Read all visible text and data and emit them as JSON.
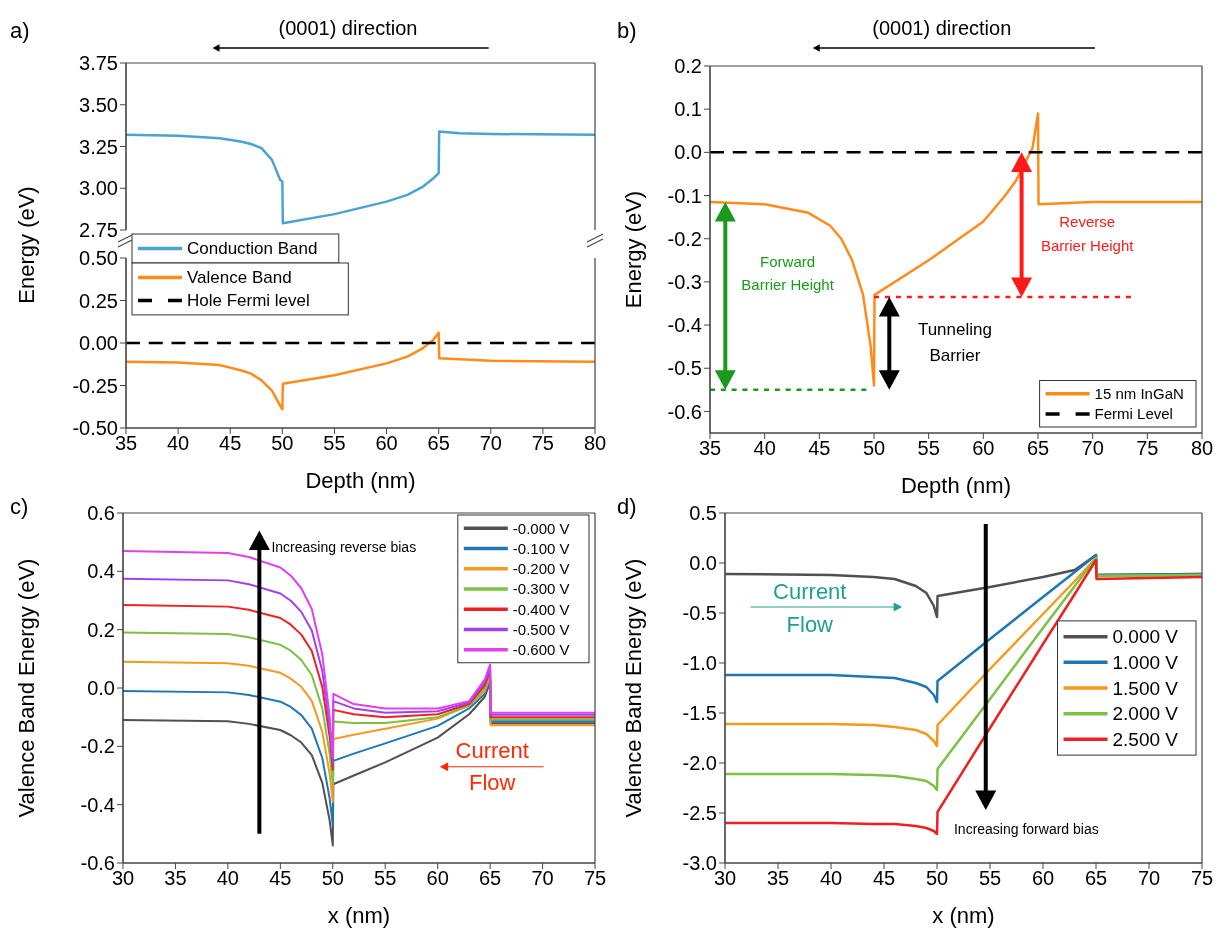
{
  "chart_data": [
    {
      "type": "line",
      "title": "(0001) direction",
      "annotations": [
        "a)"
      ],
      "x": [
        35,
        40,
        44,
        46,
        47,
        48,
        49,
        49.8,
        50,
        50.05,
        55,
        60,
        62,
        63.5,
        64.5,
        65,
        65.05,
        67,
        70,
        80
      ],
      "series": [
        {
          "name": "Conduction Band",
          "color": "#4ba3d3",
          "values": [
            3.32,
            3.315,
            3.3,
            3.28,
            3.265,
            3.24,
            3.17,
            3.05,
            3.04,
            2.79,
            2.845,
            2.92,
            2.96,
            3.01,
            3.06,
            3.09,
            3.34,
            3.33,
            3.325,
            3.32
          ]
        }
      ],
      "xlim": [
        35,
        80
      ],
      "ylim": [
        2.75,
        3.75
      ],
      "yticks": [
        2.75,
        {
          "value": 3,
          "label": "3.00"
        },
        3.25,
        {
          "value": 3.5,
          "label": "3.50"
        },
        3.75
      ],
      "tick_labels": "y",
      "legend": "bottom left"
    },
    {
      "type": "line",
      "xlabel": "Depth (nm)",
      "ylabel": "Energy (eV)",
      "series": [
        {
          "name": "Valence Band",
          "color": "#ff8c1a",
          "x": [
            35,
            40,
            44,
            46,
            47,
            48,
            49,
            49.8,
            50,
            50.05,
            55,
            60,
            62,
            63.5,
            64.5,
            65,
            65.05,
            70,
            80
          ],
          "values": [
            -0.11,
            -0.115,
            -0.13,
            -0.16,
            -0.18,
            -0.22,
            -0.28,
            -0.37,
            -0.39,
            -0.24,
            -0.19,
            -0.12,
            -0.08,
            -0.03,
            0.02,
            0.06,
            -0.09,
            -0.105,
            -0.11
          ]
        },
        {
          "name": "Hole Fermi level",
          "color": "#000000",
          "line_style": "dashed",
          "x": [
            35,
            80
          ],
          "values": [
            0,
            0
          ]
        }
      ],
      "xlim": [
        35,
        80
      ],
      "xticks": [
        35,
        40,
        45,
        50,
        55,
        60,
        65,
        70,
        75,
        80
      ],
      "ylim": [
        -0.5,
        0.5
      ],
      "yticks": [
        {
          "value": -0.5,
          "label": "-0.50"
        },
        -0.25,
        {
          "value": 0,
          "label": "0.00"
        },
        0.25,
        {
          "value": 0.5,
          "label": "0.50"
        }
      ],
      "legend": "top left"
    },
    {
      "type": "line",
      "title": "(0001) direction",
      "xlabel": "Depth (nm)",
      "ylabel": "Energy (eV)",
      "annotations": [
        "b)",
        "Forward Barrier Height",
        "Tunneling Barrier",
        "Reverse Barrier Height"
      ],
      "series": [
        {
          "name": "15 nm InGaN",
          "color": "#ff8c1a",
          "x": [
            35,
            40,
            44,
            46,
            47,
            48,
            49,
            49.7,
            50,
            50.05,
            55,
            60,
            62,
            63,
            64.5,
            65,
            65.05,
            70,
            80
          ],
          "values": [
            -0.115,
            -0.12,
            -0.14,
            -0.17,
            -0.2,
            -0.25,
            -0.33,
            -0.45,
            -0.54,
            -0.33,
            -0.25,
            -0.16,
            -0.1,
            -0.065,
            0.01,
            0.09,
            -0.12,
            -0.115,
            -0.115
          ]
        },
        {
          "name": "Fermi Level",
          "color": "#000000",
          "line_style": "dashed",
          "x": [
            35,
            80
          ],
          "values": [
            0,
            0
          ]
        },
        {
          "color": "#1a9a1a",
          "line_style": "dotted",
          "x": [
            35,
            49.3
          ],
          "values": [
            -0.55,
            -0.55
          ]
        },
        {
          "color": "#ff1a1a",
          "line_style": "dotted",
          "x": [
            50,
            73.5
          ],
          "values": [
            -0.335,
            -0.335
          ]
        }
      ],
      "xlim": [
        35,
        80
      ],
      "xticks": [
        35,
        40,
        45,
        50,
        55,
        60,
        65,
        70,
        75,
        80
      ],
      "ylim": [
        -0.65,
        0.2
      ],
      "yticks": [
        -0.6,
        -0.5,
        -0.4,
        -0.3,
        -0.2,
        -0.1,
        {
          "value": 0,
          "label": "0.0"
        },
        0.1,
        0.2
      ],
      "legend": "bottom right"
    },
    {
      "type": "line",
      "xlabel": "x (nm)",
      "ylabel": "Valence Band Energy (eV)",
      "annotations": [
        "c)",
        "Increasing reverse bias",
        "Current Flow"
      ],
      "x": [
        30,
        40,
        42,
        45,
        46,
        47,
        48,
        49,
        49.7,
        50,
        50.05,
        52,
        55,
        60,
        63,
        64.5,
        65,
        65.05,
        75
      ],
      "series": [
        {
          "name": "-0.000 V",
          "color": "#505050",
          "values": [
            -0.11,
            -0.114,
            -0.123,
            -0.144,
            -0.162,
            -0.187,
            -0.23,
            -0.325,
            -0.454,
            -0.54,
            -0.33,
            -0.3,
            -0.255,
            -0.17,
            -0.09,
            -0.03,
            0.02,
            -0.121,
            -0.121
          ]
        },
        {
          "name": "-0.100 V",
          "color": "#1f77b4",
          "values": [
            -0.01,
            -0.015,
            -0.024,
            -0.047,
            -0.065,
            -0.093,
            -0.139,
            -0.24,
            -0.378,
            -0.47,
            -0.25,
            -0.225,
            -0.19,
            -0.13,
            -0.07,
            -0.02,
            0.03,
            -0.114,
            -0.114
          ]
        },
        {
          "name": "-0.200 V",
          "color": "#f59a1c",
          "values": [
            0.09,
            0.085,
            0.076,
            0.052,
            0.032,
            0.004,
            -0.044,
            -0.15,
            -0.294,
            -0.39,
            -0.175,
            -0.16,
            -0.14,
            -0.105,
            -0.06,
            -0.01,
            0.04,
            -0.128,
            -0.128
          ]
        },
        {
          "name": "-0.300 V",
          "color": "#7cc242",
          "values": [
            0.19,
            0.185,
            0.174,
            0.148,
            0.128,
            0.096,
            0.044,
            -0.07,
            -0.226,
            -0.33,
            -0.115,
            -0.12,
            -0.12,
            -0.1,
            -0.06,
            0,
            0.05,
            -0.107,
            -0.107
          ]
        },
        {
          "name": "-0.400 V",
          "color": "#f02020",
          "values": [
            0.285,
            0.279,
            0.268,
            0.24,
            0.217,
            0.183,
            0.127,
            0.003,
            -0.167,
            -0.28,
            -0.075,
            -0.09,
            -0.1,
            -0.09,
            -0.055,
            0.01,
            0.06,
            -0.1,
            -0.1
          ]
        },
        {
          "name": "-0.500 V",
          "color": "#a040f0",
          "values": [
            0.375,
            0.369,
            0.356,
            0.324,
            0.299,
            0.261,
            0.197,
            0.058,
            -0.133,
            -0.26,
            -0.045,
            -0.07,
            -0.085,
            -0.08,
            -0.05,
            0.02,
            0.07,
            -0.092,
            -0.092
          ]
        },
        {
          "name": "-0.600 V",
          "color": "#e040f0",
          "values": [
            0.47,
            0.463,
            0.449,
            0.413,
            0.385,
            0.342,
            0.271,
            0.115,
            -0.098,
            -0.24,
            -0.02,
            -0.055,
            -0.07,
            -0.07,
            -0.045,
            0.03,
            0.08,
            -0.085,
            -0.085
          ]
        }
      ],
      "xlim": [
        30,
        75
      ],
      "xticks": [
        30,
        35,
        40,
        45,
        50,
        55,
        60,
        65,
        70,
        75
      ],
      "ylim": [
        -0.6,
        0.6
      ],
      "yticks": [
        -0.6,
        -0.4,
        -0.2,
        {
          "value": 0,
          "label": "0.0"
        },
        0.2,
        0.4,
        0.6
      ],
      "legend": "top right"
    },
    {
      "type": "line",
      "xlabel": "x (nm)",
      "ylabel": "Valence Band Energy (eV)",
      "annotations": [
        "d)",
        "Current Flow",
        "Increasing forward bias"
      ],
      "x": [
        30,
        40,
        44,
        46,
        48,
        49,
        49.7,
        50,
        50.05,
        55,
        60,
        63,
        65,
        65.05,
        75
      ],
      "series": [
        {
          "name": "0.000 V",
          "color": "#505050",
          "values": [
            -0.11,
            -0.12,
            -0.14,
            -0.16,
            -0.23,
            -0.3,
            -0.43,
            -0.54,
            -0.33,
            -0.24,
            -0.14,
            -0.07,
            0.08,
            -0.12,
            -0.11
          ]
        },
        {
          "name": "1.000 V",
          "color": "#1f77b4",
          "values": [
            -1.12,
            -1.12,
            -1.14,
            -1.15,
            -1.2,
            -1.24,
            -1.32,
            -1.39,
            -1.18,
            -0.76,
            -0.34,
            -0.09,
            0.08,
            -0.12,
            -0.11
          ]
        },
        {
          "name": "1.500 V",
          "color": "#f59a1c",
          "values": [
            -1.61,
            -1.61,
            -1.62,
            -1.64,
            -1.67,
            -1.71,
            -1.78,
            -1.83,
            -1.62,
            -1.06,
            -0.51,
            -0.18,
            0.05,
            -0.13,
            -0.12
          ]
        },
        {
          "name": "2.000 V",
          "color": "#7cc242",
          "values": [
            -2.11,
            -2.11,
            -2.12,
            -2.13,
            -2.16,
            -2.18,
            -2.23,
            -2.27,
            -2.06,
            -1.36,
            -0.65,
            -0.23,
            0.05,
            -0.13,
            -0.12
          ]
        },
        {
          "name": "2.500 V",
          "color": "#f02020",
          "values": [
            -2.6,
            -2.6,
            -2.61,
            -2.61,
            -2.63,
            -2.65,
            -2.68,
            -2.71,
            -2.49,
            -1.65,
            -0.81,
            -0.31,
            0.03,
            -0.16,
            -0.14
          ]
        }
      ],
      "xlim": [
        30,
        75
      ],
      "xticks": [
        30,
        35,
        40,
        45,
        50,
        55,
        60,
        65,
        70,
        75
      ],
      "ylim": [
        -3,
        0.5
      ],
      "yticks": [
        {
          "value": -3,
          "label": "-3.0"
        },
        -2.5,
        {
          "value": -2,
          "label": "-2.0"
        },
        -1.5,
        {
          "value": -1,
          "label": "-1.0"
        },
        -0.5,
        {
          "value": 0,
          "label": "0.0"
        },
        0.5
      ],
      "legend": "right"
    }
  ]
}
